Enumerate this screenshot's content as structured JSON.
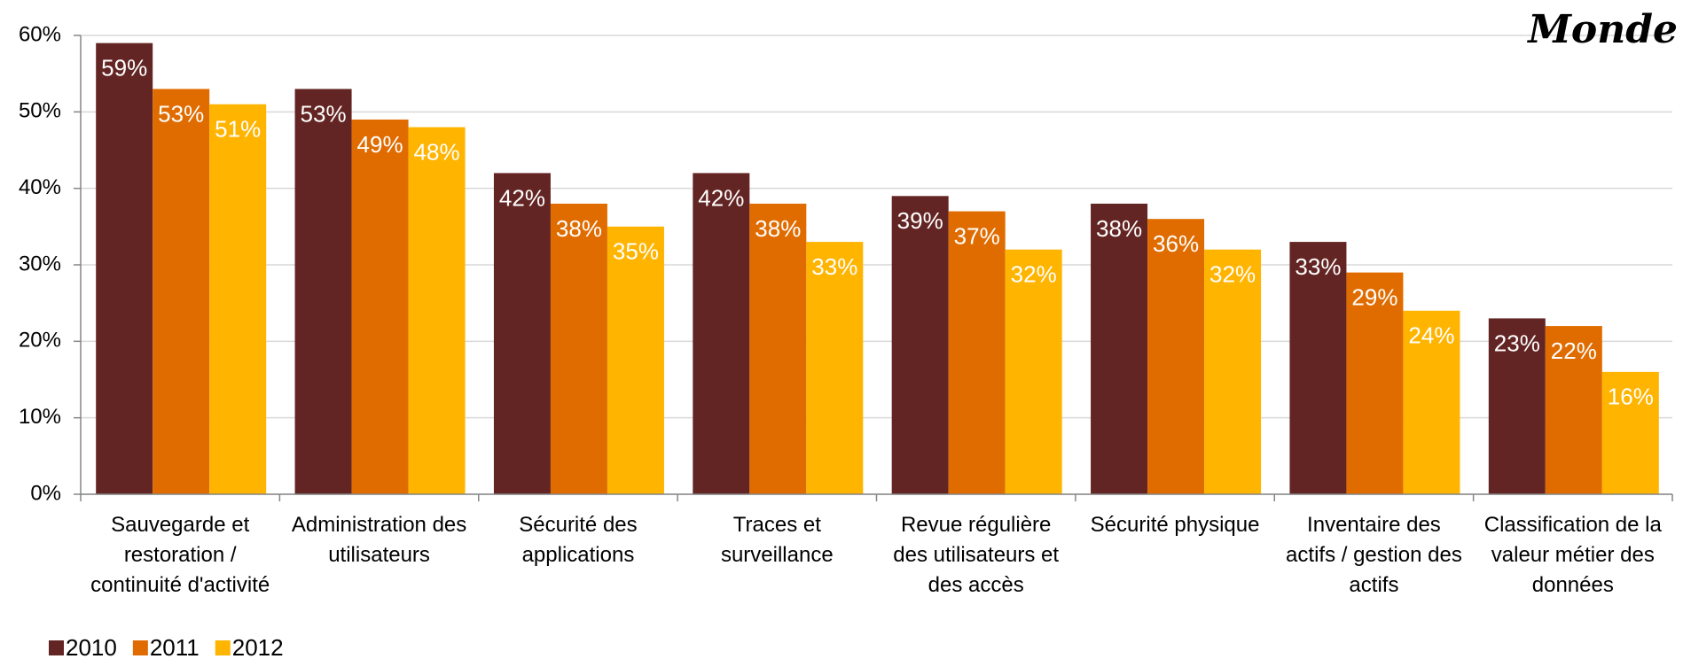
{
  "chart_data": {
    "type": "bar",
    "title": "Monde",
    "categories": [
      "Sauvegarde et restoration / continuité d'activité",
      "Administration des utilisateurs",
      "Sécurité des applications",
      "Traces et surveillance",
      "Revue régulière des utilisateurs et des accès",
      "Sécurité physique",
      "Inventaire des actifs / gestion des actifs",
      "Classification de la valeur métier des données"
    ],
    "series": [
      {
        "name": "2010",
        "color": "#632523",
        "values": [
          59,
          53,
          42,
          42,
          39,
          38,
          33,
          23
        ],
        "value_labels": [
          "59%",
          "53%",
          "42%",
          "42%",
          "39%",
          "38%",
          "33%",
          "23%"
        ]
      },
      {
        "name": "2011",
        "color": "#e06c00",
        "values": [
          53,
          49,
          38,
          38,
          37,
          36,
          29,
          22
        ],
        "value_labels": [
          "53%",
          "49%",
          "38%",
          "38%",
          "37%",
          "36%",
          "29%",
          "22%"
        ]
      },
      {
        "name": "2012",
        "color": "#ffb400",
        "values": [
          51,
          48,
          35,
          33,
          32,
          32,
          24,
          16
        ],
        "value_labels": [
          "51%",
          "48%",
          "35%",
          "33%",
          "32%",
          "32%",
          "24%",
          "16%"
        ]
      }
    ],
    "ylim": [
      0,
      60
    ],
    "yticks": [
      {
        "value": 0,
        "label": "0%"
      },
      {
        "value": 10,
        "label": "10%"
      },
      {
        "value": 20,
        "label": "20%"
      },
      {
        "value": 30,
        "label": "30%"
      },
      {
        "value": 40,
        "label": "40%"
      },
      {
        "value": 50,
        "label": "50%"
      },
      {
        "value": 60,
        "label": "60%"
      }
    ],
    "grid": true,
    "legend": "bottom-left"
  }
}
